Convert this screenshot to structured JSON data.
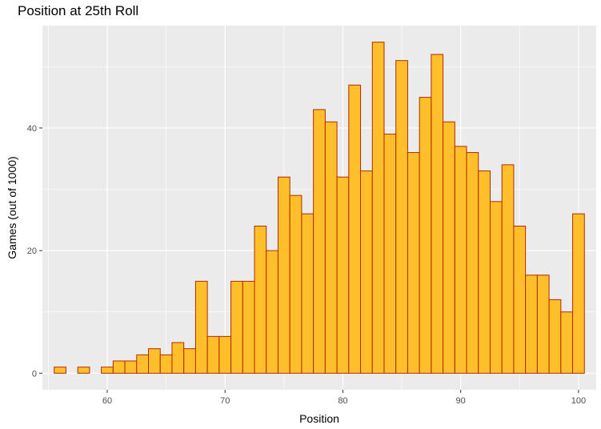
{
  "chart_data": {
    "type": "bar",
    "title": "Position at 25th Roll",
    "xlabel": "Position",
    "ylabel": "Games (out of 1000)",
    "x": [
      56,
      57,
      58,
      59,
      60,
      61,
      62,
      63,
      64,
      65,
      66,
      67,
      68,
      69,
      70,
      71,
      72,
      73,
      74,
      75,
      76,
      77,
      78,
      79,
      80,
      81,
      82,
      83,
      84,
      85,
      86,
      87,
      88,
      89,
      90,
      91,
      92,
      93,
      94,
      95,
      96,
      97,
      98,
      99,
      100
    ],
    "values": [
      1,
      0,
      1,
      0,
      1,
      2,
      2,
      3,
      4,
      3,
      5,
      4,
      15,
      6,
      6,
      15,
      15,
      24,
      20,
      32,
      29,
      26,
      43,
      41,
      32,
      47,
      33,
      54,
      39,
      51,
      36,
      45,
      52,
      41,
      37,
      36,
      33,
      28,
      34,
      24,
      16,
      16,
      12,
      10,
      26
    ],
    "xlim": [
      54.5,
      101.5
    ],
    "ylim": [
      -2.7,
      56.7
    ],
    "x_ticks": [
      60,
      70,
      80,
      90,
      100
    ],
    "y_ticks": [
      0,
      20,
      40
    ],
    "grid": true,
    "bar_fill": "#FFBF2A",
    "bar_stroke": "#B22A00",
    "panel_bg": "#EBEBEB",
    "grid_color": "#FFFFFF"
  }
}
